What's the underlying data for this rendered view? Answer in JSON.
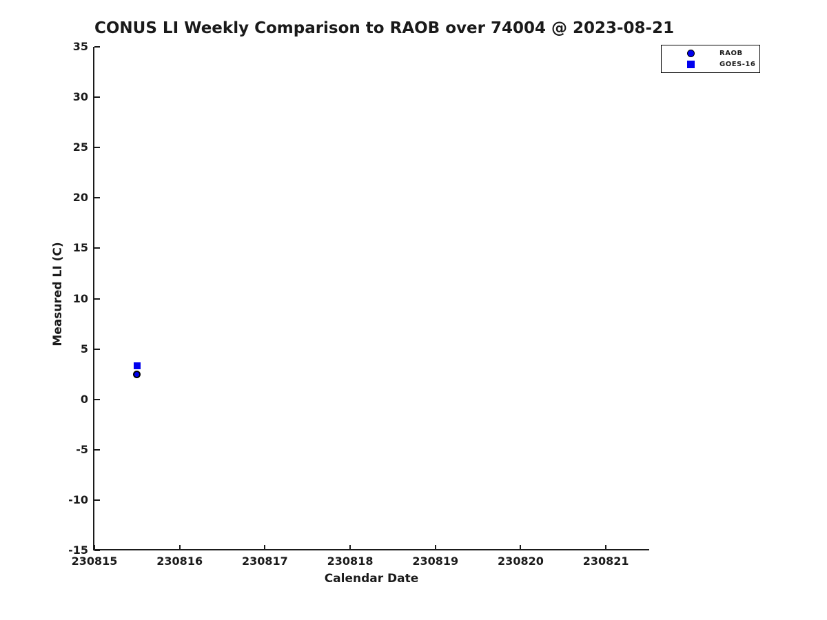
{
  "figure": {
    "background": "#ffffff"
  },
  "chart_data": {
    "type": "scatter",
    "title": "CONUS LI Weekly Comparison to RAOB over 74004 @ 2023-08-21",
    "xlabel": "Calendar Date",
    "ylabel": "Measured LI (C)",
    "xlim": [
      230815,
      230821.5
    ],
    "ylim": [
      -15,
      35
    ],
    "x_ticks": [
      230815,
      230816,
      230817,
      230818,
      230819,
      230820,
      230821
    ],
    "y_ticks": [
      35,
      30,
      25,
      20,
      15,
      10,
      5,
      0,
      -5,
      -10,
      -15
    ],
    "grid": false,
    "legend": {
      "position": "upper-right-outside-plot",
      "border": "#000000"
    },
    "series": [
      {
        "name": "RAOB",
        "marker": "circle",
        "fill_color": "#0000ee",
        "edge_color": "#000000",
        "points": [
          {
            "x": 230815.5,
            "y": 2.5
          }
        ]
      },
      {
        "name": "GOES-16",
        "marker": "square",
        "fill_color": "#0000ee",
        "edge_color": "#0000ee",
        "points": [
          {
            "x": 230815.5,
            "y": 3.3
          }
        ]
      }
    ],
    "colors": {
      "marker_blue": "#0000ee",
      "axis": "#1a1a1a",
      "text": "#1a1a1a"
    }
  }
}
